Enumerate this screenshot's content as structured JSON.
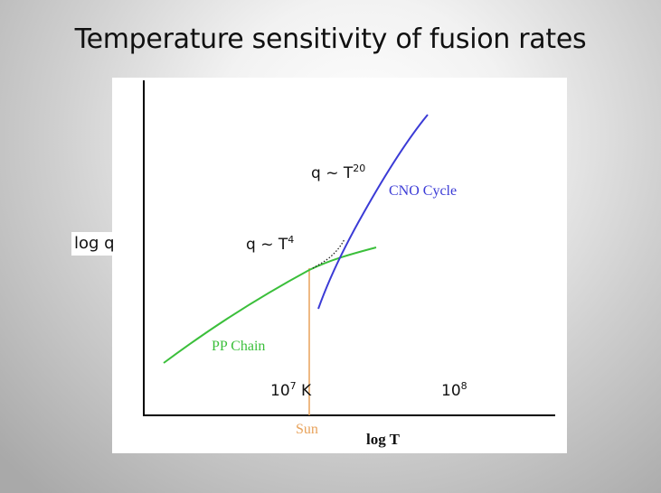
{
  "title": "Temperature sensitivity of fusion rates",
  "y_axis_label": "log q",
  "x_axis_label": "log T",
  "curves": {
    "pp": {
      "label": "PP Chain",
      "color": "#3bbf3b"
    },
    "cno": {
      "label": "CNO Cycle",
      "color": "#3b3bd6"
    }
  },
  "annotations": {
    "pp_slope": {
      "base": "q ~ T",
      "exp": "4"
    },
    "cno_slope": {
      "base": "q ~ T",
      "exp": "20"
    }
  },
  "ticks": {
    "t7": {
      "base": "10",
      "exp": "7",
      "suffix": " K"
    },
    "t8": {
      "base": "10",
      "exp": "8"
    }
  },
  "sun": {
    "label": "Sun",
    "color": "#e8a25a"
  },
  "colors": {
    "axis": "#000000",
    "text": "#111111"
  }
}
